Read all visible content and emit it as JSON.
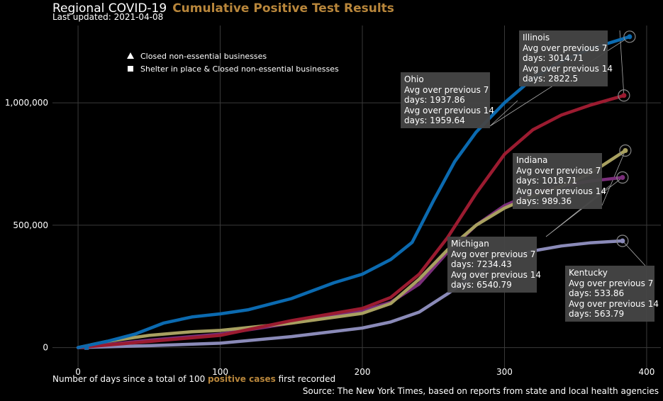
{
  "header": {
    "title": "Regional COVID-19",
    "title_accent": "Cumulative Positive Test Results",
    "subtitle": "Last updated: 2021-04-08"
  },
  "legend": [
    {
      "marker": "triangle",
      "label": "Closed non-essential businesses"
    },
    {
      "marker": "square",
      "label": "Shelter in place & Closed non-essential businesses"
    }
  ],
  "footer": {
    "xlabel_pre": "Number of days since a total of 100 ",
    "xlabel_accent": "positive cases",
    "xlabel_post": " first recorded",
    "source": "Source: The New York Times, based on reports from state and local health agencies"
  },
  "tooltips": {
    "illinois": {
      "name": "Illinois",
      "l1": "Avg over previous 7",
      "l2": "days: 3014.71",
      "l3": "Avg over previous 14",
      "l4": "days: 2822.5"
    },
    "ohio": {
      "name": "Ohio",
      "l1": "Avg over previous 7",
      "l2": "days: 1937.86",
      "l3": "Avg over previous 14",
      "l4": "days: 1959.64"
    },
    "indiana": {
      "name": "Indiana",
      "l1": "Avg over previous 7",
      "l2": "days: 1018.71",
      "l3": "Avg over previous 14",
      "l4": "days: 989.36"
    },
    "michigan": {
      "name": "Michigan",
      "l1": "Avg over previous 7",
      "l2": "days: 7234.43",
      "l3": "Avg over previous 14",
      "l4": "days: 6540.79"
    },
    "kentucky": {
      "name": "Kentucky",
      "l1": "Avg over previous 7",
      "l2": "days: 533.86",
      "l3": "Avg over previous 14",
      "l4": "days: 563.79"
    }
  },
  "chart_data": {
    "type": "line",
    "xlim": [
      -18,
      410
    ],
    "ylim": [
      -85000,
      1420000
    ],
    "xticks": [
      0,
      100,
      200,
      300,
      400
    ],
    "xtick_labels": [
      "0",
      "100",
      "200",
      "300",
      "400"
    ],
    "yticks": [
      0,
      500000,
      1000000
    ],
    "ytick_labels": [
      "0",
      "500,000",
      "1,000,000"
    ],
    "grid": true,
    "legend_position": "top-left",
    "series": [
      {
        "key": "kentucky",
        "color": "#8a8ab8",
        "x": [
          0,
          50,
          100,
          150,
          200,
          220,
          240,
          260,
          280,
          300,
          320,
          340,
          360,
          383
        ],
        "y": [
          0,
          8000,
          18000,
          45000,
          80000,
          105000,
          145000,
          220000,
          300000,
          360000,
          395000,
          415000,
          428000,
          436000
        ]
      },
      {
        "key": "michigan",
        "color": "#7a2e7a",
        "x": [
          0,
          50,
          100,
          150,
          200,
          220,
          240,
          260,
          280,
          300,
          320,
          340,
          360,
          383
        ],
        "y": [
          0,
          30000,
          55000,
          100000,
          150000,
          185000,
          260000,
          390000,
          500000,
          580000,
          630000,
          660000,
          680000,
          695000
        ]
      },
      {
        "key": "indiana",
        "color": "#a8a060",
        "x": [
          0,
          20,
          50,
          80,
          100,
          150,
          200,
          220,
          240,
          260,
          280,
          300,
          320,
          340,
          360,
          385
        ],
        "y": [
          0,
          25000,
          50000,
          65000,
          70000,
          100000,
          140000,
          180000,
          280000,
          400000,
          500000,
          570000,
          620000,
          660000,
          710000,
          805000
        ]
      },
      {
        "key": "illinois",
        "color": "#9b1b30",
        "x": [
          0,
          50,
          100,
          150,
          200,
          220,
          240,
          260,
          280,
          300,
          320,
          340,
          360,
          384
        ],
        "y": [
          0,
          25000,
          50000,
          110000,
          160000,
          205000,
          300000,
          450000,
          630000,
          790000,
          890000,
          950000,
          990000,
          1030000
        ]
      },
      {
        "key": "ohio",
        "color": "#0b6ab0",
        "x": [
          0,
          20,
          40,
          60,
          80,
          100,
          120,
          150,
          180,
          200,
          220,
          235,
          250,
          265,
          280,
          290,
          300,
          320,
          340,
          360,
          388
        ],
        "y": [
          0,
          25000,
          55000,
          100000,
          125000,
          138000,
          155000,
          200000,
          265000,
          300000,
          360000,
          430000,
          600000,
          760000,
          880000,
          940000,
          1000000,
          1100000,
          1170000,
          1220000,
          1270000
        ]
      }
    ]
  }
}
